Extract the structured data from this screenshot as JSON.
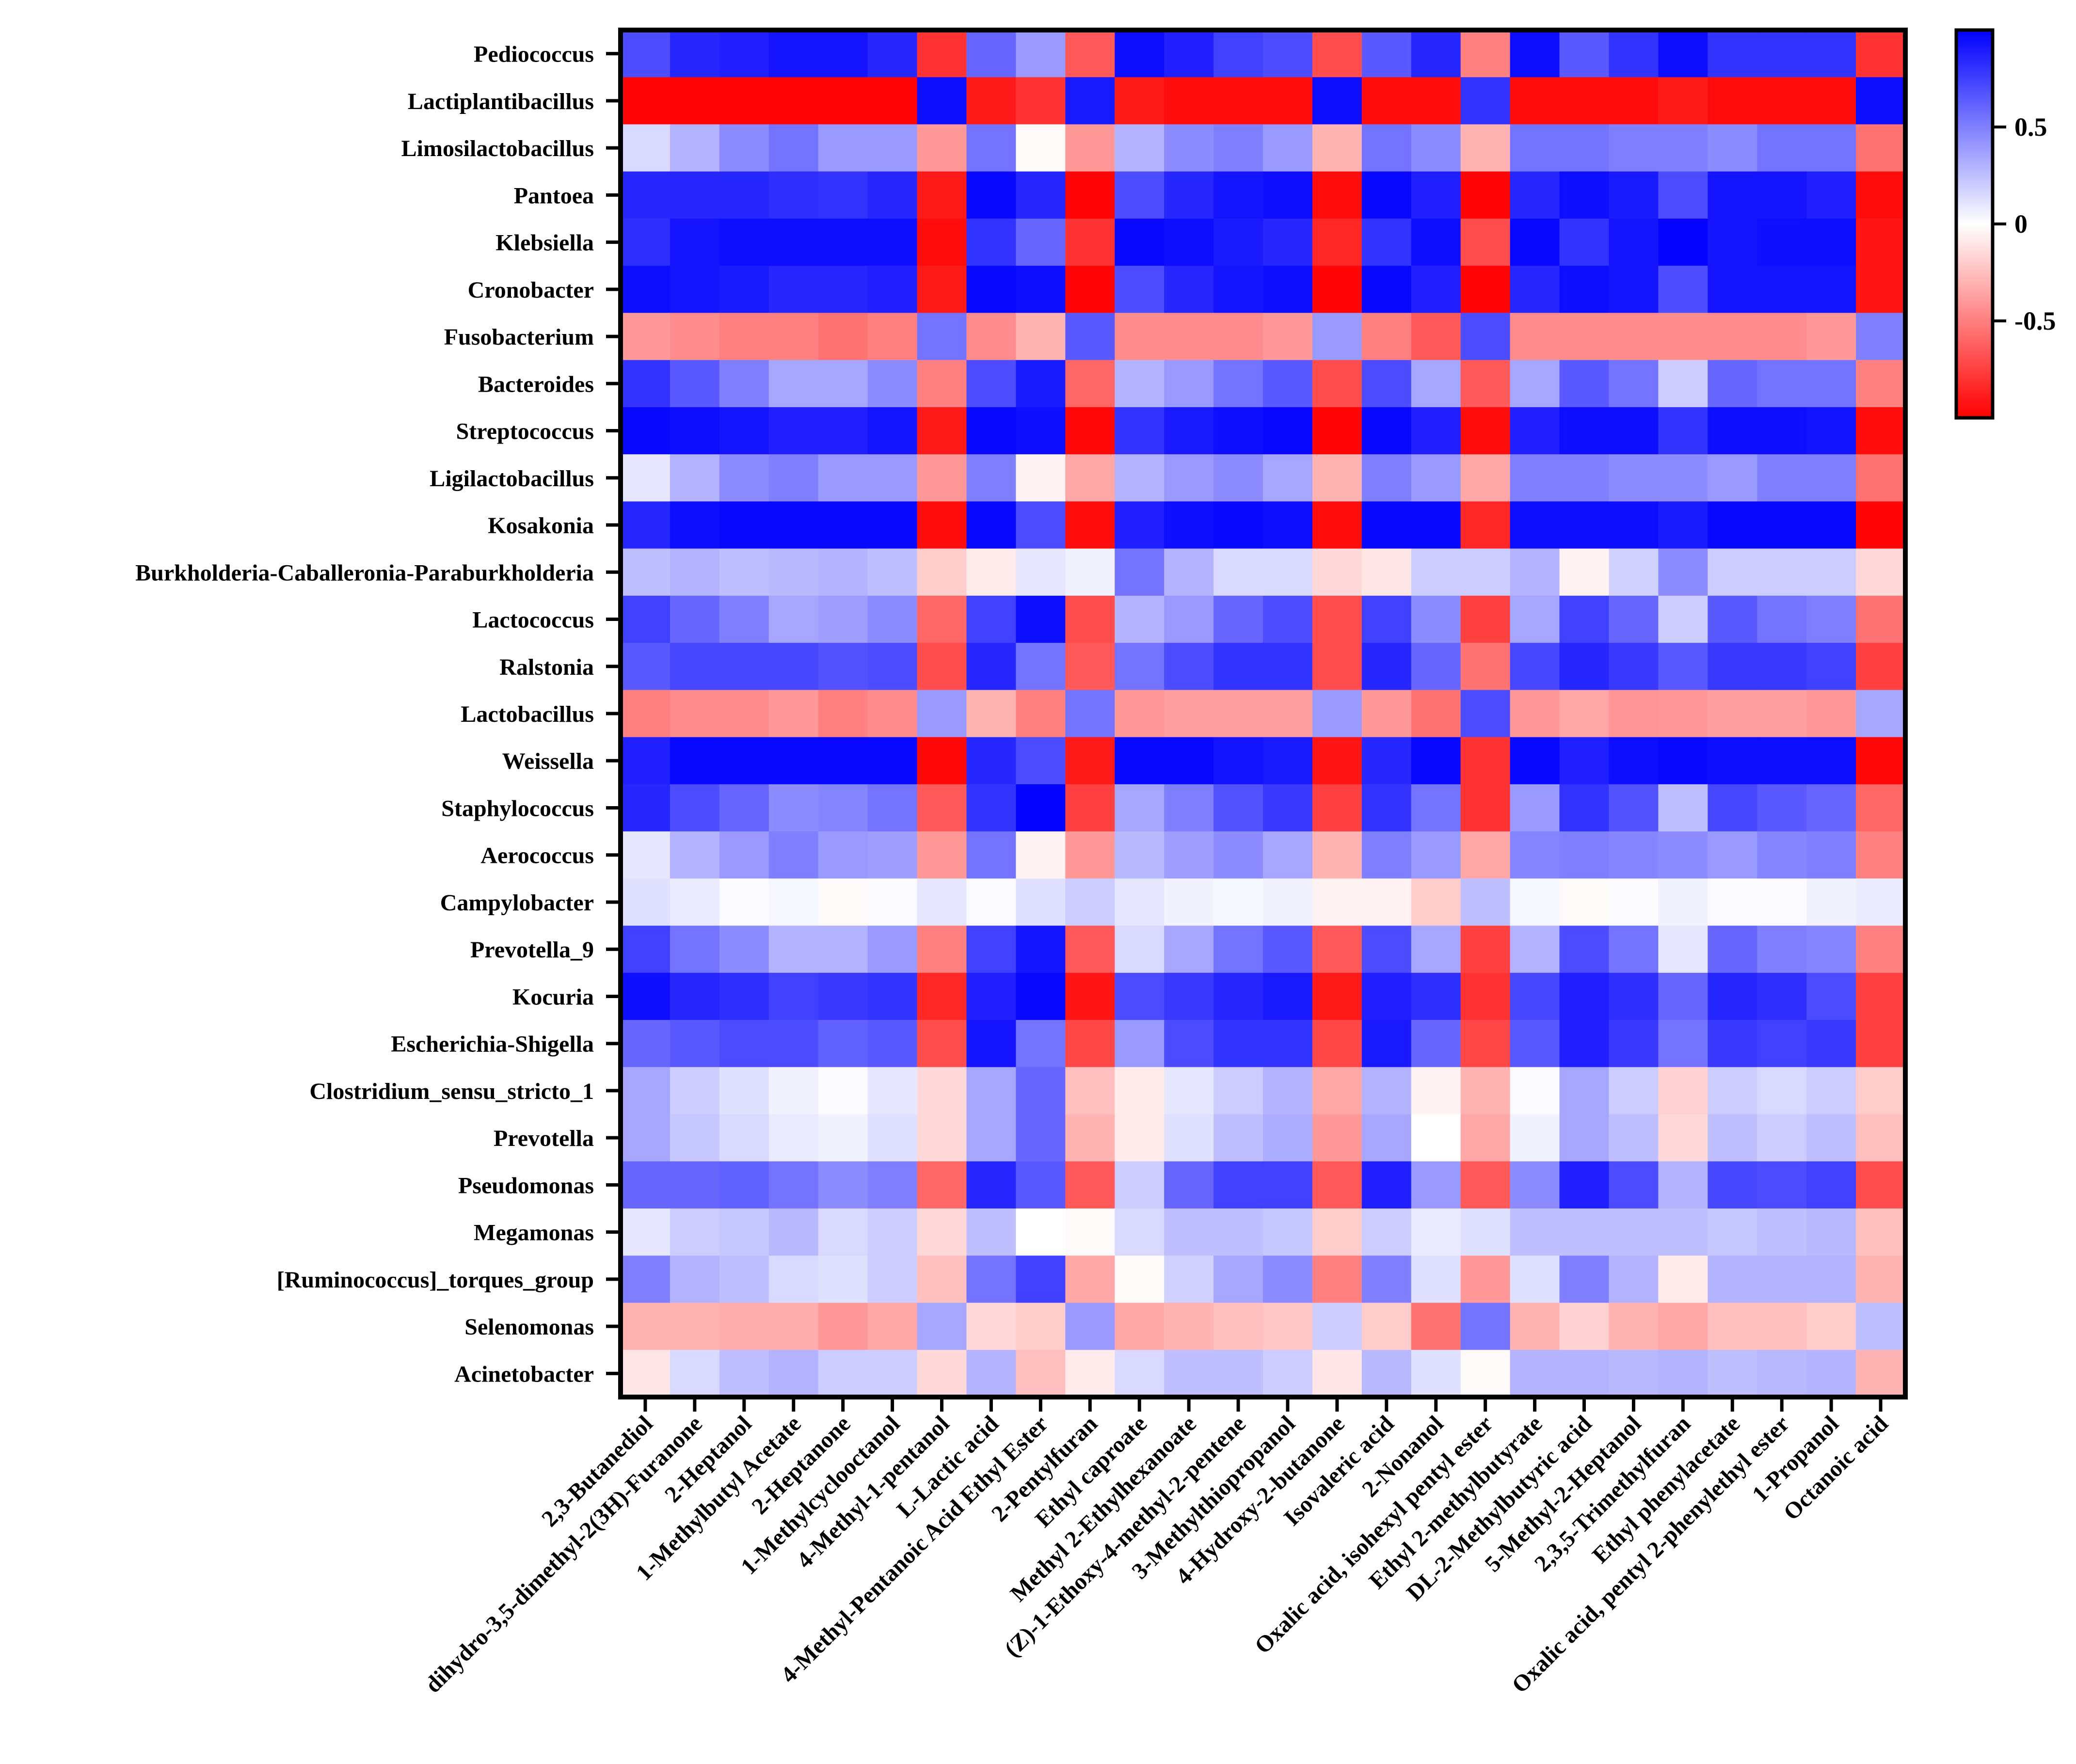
{
  "chart_data": {
    "type": "heatmap",
    "title": "",
    "xlabel": "",
    "ylabel": "",
    "rows": [
      "Pediococcus",
      "Lactiplantibacillus",
      "Limosilactobacillus",
      "Pantoea",
      "Klebsiella",
      "Cronobacter",
      "Fusobacterium",
      "Bacteroides",
      "Streptococcus",
      "Ligilactobacillus",
      "Kosakonia",
      "Burkholderia-Caballeronia-Paraburkholderia",
      "Lactococcus",
      "Ralstonia",
      "Lactobacillus",
      "Weissella",
      "Staphylococcus",
      "Aerococcus",
      "Campylobacter",
      "Prevotella_9",
      "Kocuria",
      "Escherichia-Shigella",
      "Clostridium_sensu_stricto_1",
      "Prevotella",
      "Pseudomonas",
      "Megamonas",
      "[Ruminococcus]_torques_group",
      "Selenomonas",
      "Acinetobacter"
    ],
    "columns": [
      "2,3-Butanediol",
      "dihydro-3,5-dimethyl-2(3H)-Furanone",
      "2-Heptanol",
      "1-Methylbutyl Acetate",
      "2-Heptanone",
      "1-Methylcyclooctanol",
      "4-Methyl-1-pentanol",
      "L-Lactic acid",
      "4-Methyl-Pentanoic Acid Ethyl Ester",
      "2-Pentylfuran",
      "Ethyl caproate",
      "Methyl 2-Ethylhexanoate",
      "(Z)-1-Ethoxy-4-methyl-2-pentene",
      "3-Methylthiopropanol",
      "4-Hydroxy-2-butanone",
      "Isovaleric acid",
      "2-Nonanol",
      "Oxalic acid, isohexyl pentyl ester",
      "Ethyl 2-methylbutyrate",
      "DL-2-Methylbutyric acid",
      "5-Methyl-2-Heptanol",
      "2,3,5-Trimethylfuran",
      "Ethyl phenylacetate",
      "Oxalic acid, pentyl 2-phenylethyl ester",
      "1-Propanol",
      "Octanoic acid"
    ],
    "values": [
      [
        0.7,
        0.85,
        0.88,
        0.92,
        0.92,
        0.85,
        -0.8,
        0.6,
        0.4,
        -0.65,
        0.95,
        0.88,
        0.75,
        0.7,
        -0.7,
        0.65,
        0.85,
        -0.5,
        0.95,
        0.65,
        0.8,
        0.95,
        0.8,
        0.8,
        0.8,
        -0.8
      ],
      [
        -0.98,
        -0.98,
        -0.98,
        -0.98,
        -0.98,
        -0.98,
        0.95,
        -0.9,
        -0.8,
        0.9,
        -0.9,
        -0.95,
        -0.95,
        -0.95,
        0.95,
        -0.95,
        -0.95,
        0.8,
        -0.95,
        -0.95,
        -0.95,
        -0.9,
        -0.95,
        -0.95,
        -0.95,
        0.95
      ],
      [
        0.15,
        0.3,
        0.45,
        0.55,
        0.4,
        0.4,
        -0.4,
        0.55,
        -0.02,
        -0.4,
        0.3,
        0.45,
        0.5,
        0.4,
        -0.3,
        0.55,
        0.45,
        -0.3,
        0.55,
        0.55,
        0.5,
        0.5,
        0.45,
        0.55,
        0.55,
        -0.55
      ],
      [
        0.85,
        0.85,
        0.85,
        0.82,
        0.8,
        0.85,
        -0.9,
        0.97,
        0.85,
        -0.98,
        0.7,
        0.85,
        0.92,
        0.95,
        -0.95,
        0.97,
        0.88,
        -0.98,
        0.85,
        0.95,
        0.9,
        0.7,
        0.92,
        0.92,
        0.88,
        -0.95
      ],
      [
        0.82,
        0.92,
        0.95,
        0.95,
        0.95,
        0.95,
        -0.95,
        0.8,
        0.6,
        -0.8,
        0.97,
        0.95,
        0.9,
        0.85,
        -0.85,
        0.8,
        0.95,
        -0.7,
        0.97,
        0.8,
        0.92,
        0.98,
        0.92,
        0.95,
        0.95,
        -0.92
      ],
      [
        0.95,
        0.92,
        0.9,
        0.85,
        0.85,
        0.88,
        -0.9,
        0.97,
        0.95,
        -0.98,
        0.7,
        0.85,
        0.92,
        0.95,
        -0.98,
        0.97,
        0.88,
        -0.98,
        0.85,
        0.95,
        0.92,
        0.7,
        0.92,
        0.92,
        0.92,
        -0.92
      ],
      [
        -0.4,
        -0.45,
        -0.5,
        -0.5,
        -0.55,
        -0.5,
        0.55,
        -0.45,
        -0.3,
        0.65,
        -0.45,
        -0.45,
        -0.45,
        -0.4,
        0.4,
        -0.5,
        -0.65,
        0.7,
        -0.45,
        -0.45,
        -0.45,
        -0.45,
        -0.45,
        -0.45,
        -0.4,
        0.5
      ],
      [
        0.8,
        0.65,
        0.5,
        0.35,
        0.35,
        0.45,
        -0.5,
        0.7,
        0.9,
        -0.6,
        0.3,
        0.4,
        0.55,
        0.65,
        -0.7,
        0.7,
        0.35,
        -0.65,
        0.35,
        0.65,
        0.55,
        0.2,
        0.6,
        0.55,
        0.55,
        -0.5
      ],
      [
        0.97,
        0.95,
        0.92,
        0.88,
        0.88,
        0.92,
        -0.9,
        0.97,
        0.95,
        -0.97,
        0.8,
        0.9,
        0.95,
        0.97,
        -0.98,
        0.97,
        0.88,
        -0.95,
        0.88,
        0.95,
        0.95,
        0.8,
        0.95,
        0.95,
        0.93,
        -0.95
      ],
      [
        0.1,
        0.3,
        0.45,
        0.5,
        0.4,
        0.4,
        -0.4,
        0.5,
        -0.05,
        -0.35,
        0.3,
        0.4,
        0.45,
        0.35,
        -0.3,
        0.5,
        0.4,
        -0.35,
        0.5,
        0.5,
        0.45,
        0.45,
        0.4,
        0.5,
        0.5,
        -0.55
      ],
      [
        0.85,
        0.95,
        0.97,
        0.97,
        0.97,
        0.97,
        -0.95,
        0.97,
        0.7,
        -0.95,
        0.88,
        0.95,
        0.97,
        0.95,
        -0.95,
        0.97,
        0.97,
        -0.85,
        0.95,
        0.95,
        0.95,
        0.9,
        0.97,
        0.97,
        0.97,
        -0.98
      ],
      [
        0.25,
        0.3,
        0.25,
        0.28,
        0.3,
        0.25,
        -0.2,
        -0.08,
        0.1,
        0.05,
        0.55,
        0.3,
        0.15,
        0.15,
        -0.15,
        -0.1,
        0.2,
        0.2,
        0.3,
        -0.05,
        0.18,
        0.45,
        0.2,
        0.2,
        0.2,
        -0.15
      ],
      [
        0.75,
        0.6,
        0.5,
        0.35,
        0.38,
        0.45,
        -0.6,
        0.75,
        0.95,
        -0.7,
        0.3,
        0.4,
        0.6,
        0.7,
        -0.7,
        0.75,
        0.45,
        -0.75,
        0.35,
        0.75,
        0.6,
        0.2,
        0.65,
        0.55,
        0.5,
        -0.55
      ],
      [
        0.65,
        0.72,
        0.72,
        0.72,
        0.68,
        0.7,
        -0.7,
        0.85,
        0.55,
        -0.65,
        0.55,
        0.7,
        0.8,
        0.8,
        -0.7,
        0.85,
        0.6,
        -0.55,
        0.72,
        0.85,
        0.78,
        0.65,
        0.78,
        0.78,
        0.75,
        -0.75
      ],
      [
        -0.5,
        -0.45,
        -0.45,
        -0.4,
        -0.5,
        -0.45,
        0.4,
        -0.3,
        -0.5,
        0.55,
        -0.4,
        -0.38,
        -0.38,
        -0.38,
        0.4,
        -0.4,
        -0.55,
        0.7,
        -0.4,
        -0.35,
        -0.42,
        -0.4,
        -0.38,
        -0.38,
        -0.4,
        0.35
      ],
      [
        0.88,
        0.97,
        0.97,
        0.97,
        0.97,
        0.97,
        -0.97,
        0.85,
        0.7,
        -0.9,
        0.97,
        0.97,
        0.93,
        0.9,
        -0.92,
        0.85,
        0.97,
        -0.8,
        0.97,
        0.88,
        0.95,
        0.97,
        0.95,
        0.95,
        0.95,
        -0.97
      ],
      [
        0.85,
        0.7,
        0.6,
        0.45,
        0.48,
        0.55,
        -0.65,
        0.8,
        0.98,
        -0.75,
        0.35,
        0.5,
        0.68,
        0.78,
        -0.75,
        0.8,
        0.55,
        -0.8,
        0.4,
        0.8,
        0.68,
        0.25,
        0.72,
        0.65,
        0.6,
        -0.6
      ],
      [
        0.1,
        0.3,
        0.4,
        0.5,
        0.4,
        0.38,
        -0.4,
        0.55,
        -0.05,
        -0.4,
        0.28,
        0.38,
        0.45,
        0.35,
        -0.3,
        0.5,
        0.4,
        -0.35,
        0.48,
        0.5,
        0.48,
        0.45,
        0.4,
        0.48,
        0.5,
        -0.5
      ],
      [
        0.12,
        0.08,
        0.02,
        0.03,
        -0.02,
        0.02,
        0.1,
        0.02,
        0.12,
        0.2,
        0.1,
        0.05,
        0.03,
        0.05,
        -0.05,
        -0.05,
        -0.2,
        0.25,
        0.03,
        -0.02,
        0.02,
        0.05,
        0.02,
        0.02,
        0.05,
        0.08
      ],
      [
        0.75,
        0.55,
        0.45,
        0.3,
        0.3,
        0.4,
        -0.5,
        0.75,
        0.92,
        -0.65,
        0.15,
        0.35,
        0.55,
        0.65,
        -0.65,
        0.7,
        0.35,
        -0.75,
        0.3,
        0.7,
        0.55,
        0.1,
        0.6,
        0.5,
        0.48,
        -0.5
      ],
      [
        0.95,
        0.85,
        0.82,
        0.75,
        0.78,
        0.8,
        -0.85,
        0.88,
        0.97,
        -0.92,
        0.7,
        0.78,
        0.85,
        0.9,
        -0.9,
        0.88,
        0.82,
        -0.8,
        0.72,
        0.88,
        0.82,
        0.6,
        0.85,
        0.82,
        0.7,
        -0.75
      ],
      [
        0.6,
        0.65,
        0.7,
        0.7,
        0.62,
        0.65,
        -0.7,
        0.92,
        0.55,
        -0.72,
        0.4,
        0.7,
        0.8,
        0.8,
        -0.72,
        0.9,
        0.6,
        -0.72,
        0.65,
        0.88,
        0.78,
        0.55,
        0.78,
        0.75,
        0.78,
        -0.75
      ],
      [
        0.35,
        0.2,
        0.12,
        0.05,
        0.02,
        0.1,
        -0.15,
        0.35,
        0.6,
        -0.25,
        -0.08,
        0.1,
        0.2,
        0.3,
        -0.35,
        0.3,
        -0.05,
        -0.3,
        0.02,
        0.35,
        0.2,
        -0.18,
        0.2,
        0.15,
        0.2,
        -0.2
      ],
      [
        0.35,
        0.22,
        0.15,
        0.08,
        0.05,
        0.12,
        -0.15,
        0.35,
        0.6,
        -0.3,
        -0.08,
        0.12,
        0.25,
        0.32,
        -0.4,
        0.35,
        0.0,
        -0.35,
        0.05,
        0.35,
        0.25,
        -0.15,
        0.25,
        0.2,
        0.25,
        -0.25
      ],
      [
        0.6,
        0.6,
        0.62,
        0.55,
        0.45,
        0.5,
        -0.6,
        0.85,
        0.65,
        -0.65,
        0.2,
        0.6,
        0.75,
        0.75,
        -0.65,
        0.88,
        0.4,
        -0.65,
        0.45,
        0.88,
        0.7,
        0.3,
        0.72,
        0.7,
        0.75,
        -0.7
      ],
      [
        0.1,
        0.2,
        0.22,
        0.28,
        0.15,
        0.2,
        -0.15,
        0.25,
        0.0,
        -0.02,
        0.15,
        0.25,
        0.25,
        0.22,
        -0.2,
        0.2,
        0.08,
        0.12,
        0.25,
        0.25,
        0.25,
        0.25,
        0.22,
        0.25,
        0.28,
        -0.25
      ],
      [
        0.5,
        0.3,
        0.25,
        0.15,
        0.12,
        0.2,
        -0.25,
        0.55,
        0.75,
        -0.35,
        -0.02,
        0.18,
        0.35,
        0.45,
        -0.5,
        0.5,
        0.12,
        -0.4,
        0.12,
        0.5,
        0.3,
        -0.08,
        0.3,
        0.3,
        0.3,
        -0.3
      ],
      [
        -0.3,
        -0.3,
        -0.32,
        -0.32,
        -0.4,
        -0.35,
        0.35,
        -0.15,
        -0.2,
        0.4,
        -0.35,
        -0.3,
        -0.25,
        -0.22,
        0.2,
        -0.2,
        -0.55,
        0.55,
        -0.3,
        -0.18,
        -0.3,
        -0.35,
        -0.25,
        -0.25,
        -0.2,
        0.25
      ],
      [
        -0.1,
        0.15,
        0.25,
        0.3,
        0.2,
        0.2,
        -0.15,
        0.3,
        -0.25,
        -0.08,
        0.15,
        0.25,
        0.25,
        0.2,
        -0.1,
        0.28,
        0.12,
        -0.02,
        0.3,
        0.3,
        0.28,
        0.3,
        0.25,
        0.28,
        0.3,
        -0.3
      ]
    ],
    "colorscale": {
      "min": -1,
      "mid": 0,
      "max": 1,
      "low_color": "#ff0000",
      "mid_color": "#ffffff",
      "high_color": "#0000ff"
    },
    "colorbar_ticks": [
      {
        "value": 0.5,
        "label": "0.5"
      },
      {
        "value": 0,
        "label": "0"
      },
      {
        "value": -0.5,
        "label": "-0.5"
      }
    ],
    "grid": false
  }
}
